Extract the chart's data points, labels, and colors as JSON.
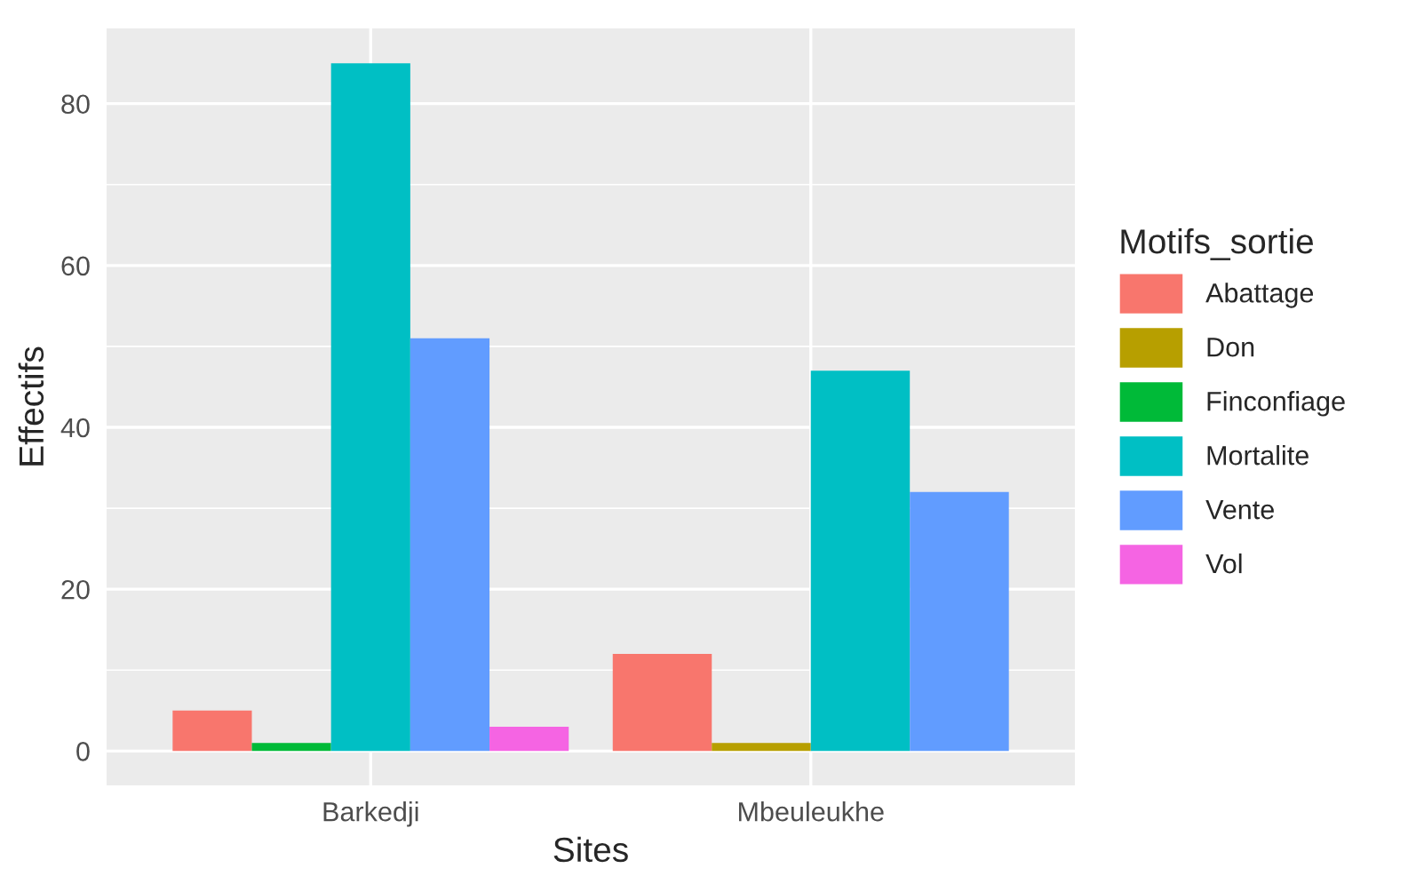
{
  "chart_data": {
    "type": "bar",
    "xlabel": "Sites",
    "ylabel": "Effectifs",
    "legend_title": "Motifs_sortie",
    "categories": [
      "Barkedji",
      "Mbeuleukhe"
    ],
    "series": [
      {
        "name": "Abattage",
        "color": "#f8766d",
        "values": [
          5,
          12
        ]
      },
      {
        "name": "Don",
        "color": "#b79f00",
        "values": [
          null,
          1
        ]
      },
      {
        "name": "Finconfiage",
        "color": "#00ba38",
        "values": [
          1,
          null
        ]
      },
      {
        "name": "Mortalite",
        "color": "#00bfc4",
        "values": [
          85,
          47
        ]
      },
      {
        "name": "Vente",
        "color": "#619cff",
        "values": [
          51,
          32
        ]
      },
      {
        "name": "Vol",
        "color": "#f564e3",
        "values": [
          3,
          null
        ]
      }
    ],
    "ylim": [
      -4.25,
      89.3
    ],
    "yticks": [
      0,
      20,
      40,
      60,
      80
    ],
    "grid": true,
    "legend": "right"
  }
}
